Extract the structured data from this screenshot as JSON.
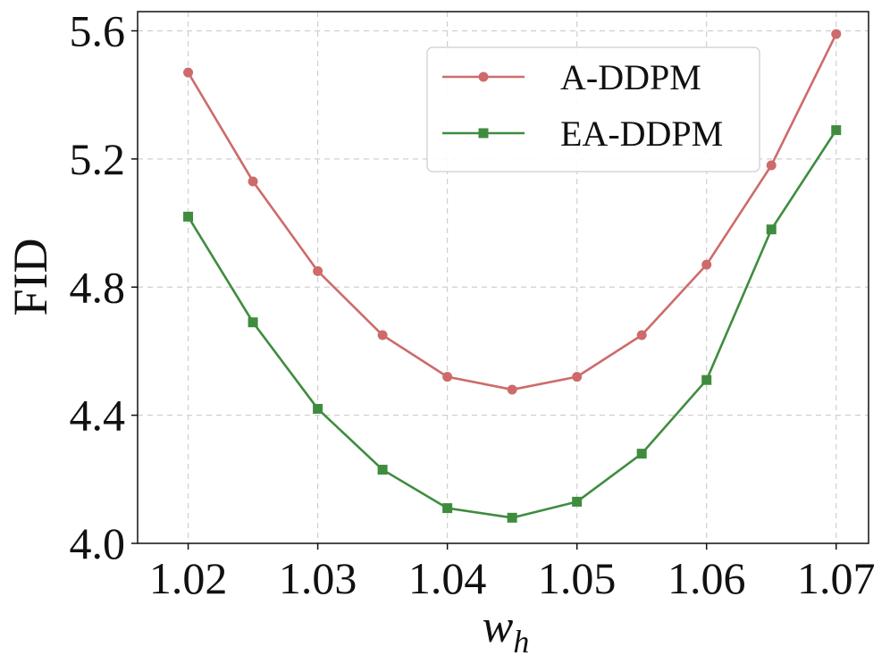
{
  "chart_data": {
    "type": "line",
    "title": "",
    "xlabel_main": "w",
    "xlabel_sub": "h",
    "ylabel": "FID",
    "x": [
      1.02,
      1.025,
      1.03,
      1.035,
      1.04,
      1.045,
      1.05,
      1.055,
      1.06,
      1.065,
      1.07
    ],
    "xlim": [
      1.0161,
      1.0725
    ],
    "ylim": [
      4.0,
      5.66
    ],
    "xticks": [
      1.02,
      1.03,
      1.04,
      1.05,
      1.06,
      1.07
    ],
    "xtick_labels": [
      "1.02",
      "1.03",
      "1.04",
      "1.05",
      "1.06",
      "1.07"
    ],
    "yticks": [
      4.0,
      4.4,
      4.8,
      5.2,
      5.6
    ],
    "ytick_labels": [
      "4.0",
      "4.4",
      "4.8",
      "5.2",
      "5.6"
    ],
    "grid": true,
    "legend_position": "top-right",
    "series": [
      {
        "name": "A-DDPM",
        "color": "#cd6b6b",
        "marker": "circle",
        "values": [
          5.47,
          5.13,
          4.85,
          4.65,
          4.52,
          4.48,
          4.52,
          4.65,
          4.87,
          5.18,
          5.59
        ]
      },
      {
        "name": "EA-DDPM",
        "color": "#3f8c3f",
        "marker": "square",
        "values": [
          5.02,
          4.69,
          4.42,
          4.23,
          4.11,
          4.08,
          4.13,
          4.28,
          4.51,
          4.98,
          5.29
        ]
      }
    ]
  }
}
